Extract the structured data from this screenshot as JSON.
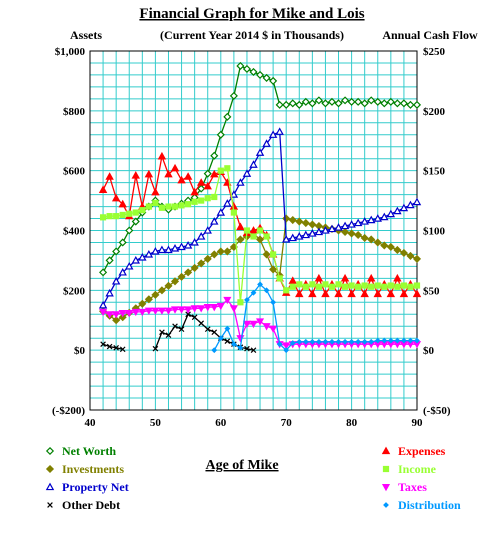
{
  "chart_data": {
    "type": "line",
    "title": "Financial Graph for Mike and Lois",
    "subtitle": "(Current Year 2014 $  in Thousands)",
    "left_axis_label": "Assets",
    "right_axis_label": "Annual Cash Flow",
    "xlabel": "Age of Mike",
    "xlim": [
      40,
      90
    ],
    "x_ticks": [
      "40",
      "50",
      "60",
      "70",
      "80",
      "90"
    ],
    "left_ylim": [
      -200,
      1000
    ],
    "left_y_ticks": [
      "$1,000",
      "$800",
      "$600",
      "$400",
      "$200",
      "$0",
      "(-$200)"
    ],
    "right_ylim": [
      -50,
      250
    ],
    "right_y_ticks": [
      "$250",
      "$200",
      "$150",
      "$100",
      "$50",
      "$0",
      "(-$50)"
    ],
    "grid": true,
    "background": "#ffffff",
    "grid_color": "#33cccc",
    "legend_left": [
      {
        "name": "Net Worth",
        "color": "#008000",
        "marker": "diamond-open"
      },
      {
        "name": "Investments",
        "color": "#808000",
        "marker": "diamond"
      },
      {
        "name": "Property Net",
        "color": "#0000cc",
        "marker": "triangle-open"
      },
      {
        "name": "Other Debt",
        "color": "#000000",
        "marker": "x"
      }
    ],
    "legend_right": [
      {
        "name": "Expenses",
        "color": "#ff0000",
        "marker": "triangle"
      },
      {
        "name": "Income",
        "color": "#99ff33",
        "marker": "square"
      },
      {
        "name": "Taxes",
        "color": "#ff00ff",
        "marker": "triangle-down"
      },
      {
        "name": "Distribution",
        "color": "#0099ff",
        "marker": "diamond-small"
      }
    ],
    "series": [
      {
        "name": "Net Worth",
        "axis": "left",
        "color": "#008000",
        "x": [
          42,
          43,
          44,
          45,
          46,
          47,
          48,
          49,
          50,
          51,
          52,
          53,
          54,
          55,
          56,
          57,
          58,
          59,
          60,
          61,
          62,
          63,
          64,
          65,
          66,
          67,
          68,
          69,
          70,
          71,
          72,
          73,
          74,
          75,
          76,
          77,
          78,
          79,
          80,
          81,
          82,
          83,
          84,
          85,
          86,
          87,
          88,
          89,
          90
        ],
        "y": [
          260,
          300,
          330,
          360,
          400,
          430,
          460,
          480,
          500,
          480,
          470,
          480,
          490,
          500,
          510,
          540,
          590,
          650,
          720,
          780,
          850,
          950,
          940,
          930,
          920,
          910,
          900,
          820,
          820,
          825,
          820,
          830,
          825,
          835,
          825,
          830,
          825,
          835,
          830,
          830,
          825,
          835,
          830,
          825,
          830,
          825,
          825,
          820,
          820
        ]
      },
      {
        "name": "Investments",
        "axis": "left",
        "color": "#808000",
        "x": [
          42,
          43,
          44,
          45,
          46,
          47,
          48,
          49,
          50,
          51,
          52,
          53,
          54,
          55,
          56,
          57,
          58,
          59,
          60,
          61,
          62,
          63,
          64,
          65,
          66,
          67,
          68,
          69,
          70,
          71,
          72,
          73,
          74,
          75,
          76,
          77,
          78,
          79,
          80,
          81,
          82,
          83,
          84,
          85,
          86,
          87,
          88,
          89,
          90
        ],
        "y": [
          130,
          115,
          100,
          110,
          125,
          140,
          155,
          170,
          185,
          200,
          215,
          230,
          245,
          260,
          275,
          290,
          305,
          320,
          330,
          330,
          345,
          370,
          380,
          390,
          370,
          320,
          270,
          250,
          440,
          435,
          430,
          425,
          420,
          415,
          410,
          405,
          400,
          395,
          390,
          385,
          375,
          370,
          360,
          350,
          345,
          335,
          325,
          315,
          305
        ]
      },
      {
        "name": "Property Net",
        "axis": "left",
        "color": "#0000cc",
        "x": [
          42,
          43,
          44,
          45,
          46,
          47,
          48,
          49,
          50,
          51,
          52,
          53,
          54,
          55,
          56,
          57,
          58,
          59,
          60,
          61,
          62,
          63,
          64,
          65,
          66,
          67,
          68,
          69,
          70,
          71,
          72,
          73,
          74,
          75,
          76,
          77,
          78,
          79,
          80,
          81,
          82,
          83,
          84,
          85,
          86,
          87,
          88,
          89,
          90
        ],
        "y": [
          150,
          190,
          230,
          260,
          280,
          300,
          310,
          320,
          330,
          335,
          335,
          340,
          345,
          350,
          360,
          380,
          400,
          430,
          460,
          490,
          520,
          560,
          590,
          620,
          660,
          690,
          720,
          730,
          370,
          375,
          380,
          385,
          390,
          395,
          400,
          405,
          410,
          415,
          420,
          425,
          430,
          435,
          440,
          445,
          455,
          465,
          475,
          485,
          495
        ]
      },
      {
        "name": "Other Debt",
        "axis": "left",
        "color": "#000000",
        "x": [
          42,
          43,
          44,
          45,
          50,
          51,
          52,
          53,
          54,
          55,
          56,
          57,
          58,
          59,
          60,
          61,
          62,
          63,
          64,
          65
        ],
        "y": [
          20,
          12,
          8,
          3,
          5,
          60,
          50,
          80,
          70,
          120,
          110,
          90,
          70,
          60,
          40,
          30,
          20,
          10,
          5,
          0
        ]
      },
      {
        "name": "Expenses",
        "axis": "right",
        "color": "#ff0000",
        "x": [
          42,
          43,
          44,
          45,
          46,
          47,
          48,
          49,
          50,
          51,
          52,
          53,
          54,
          55,
          56,
          57,
          58,
          59,
          60,
          61,
          62,
          63,
          64,
          65,
          66,
          67,
          68,
          69,
          70,
          71,
          72,
          73,
          74,
          75,
          76,
          77,
          78,
          79,
          80,
          81,
          82,
          83,
          84,
          85,
          86,
          87,
          88,
          89,
          90
        ],
        "y": [
          134,
          145,
          127,
          122,
          112,
          146,
          120,
          147,
          132,
          162,
          147,
          152,
          142,
          145,
          132,
          140,
          137,
          147,
          149,
          140,
          120,
          103,
          98,
          100,
          102,
          96,
          80,
          60,
          48,
          58,
          47,
          55,
          47,
          60,
          47,
          55,
          47,
          60,
          47,
          55,
          47,
          60,
          47,
          55,
          47,
          60,
          47,
          55,
          47
        ]
      },
      {
        "name": "Income",
        "axis": "right",
        "color": "#99ff33",
        "x": [
          42,
          43,
          44,
          45,
          46,
          47,
          48,
          49,
          50,
          51,
          52,
          53,
          54,
          55,
          56,
          57,
          58,
          59,
          60,
          61,
          62,
          63,
          64,
          65,
          66,
          67,
          68,
          69,
          70,
          71,
          72,
          73,
          74,
          75,
          76,
          77,
          78,
          79,
          80,
          81,
          82,
          83,
          84,
          85,
          86,
          87,
          88,
          89,
          90
        ],
        "y": [
          111,
          112,
          112,
          113,
          114,
          115,
          117,
          120,
          123,
          119,
          120,
          120,
          121,
          122,
          124,
          125,
          127,
          128,
          150,
          152,
          115,
          40,
          100,
          95,
          100,
          95,
          80,
          60,
          50,
          53,
          55,
          53,
          55,
          53,
          55,
          53,
          55,
          53,
          54,
          53,
          54,
          53,
          54,
          53,
          54,
          53,
          54,
          53,
          54
        ]
      },
      {
        "name": "Taxes",
        "axis": "right",
        "color": "#ff00ff",
        "x": [
          42,
          43,
          44,
          45,
          46,
          47,
          48,
          49,
          50,
          51,
          52,
          53,
          54,
          55,
          56,
          57,
          58,
          59,
          60,
          61,
          62,
          63,
          64,
          65,
          66,
          67,
          68,
          69,
          70,
          71,
          72,
          73,
          74,
          75,
          76,
          77,
          78,
          79,
          80,
          81,
          82,
          83,
          84,
          85,
          86,
          87,
          88,
          89,
          90
        ],
        "y": [
          32,
          30,
          30,
          31,
          31,
          32,
          32,
          33,
          33,
          33,
          33,
          34,
          34,
          34,
          35,
          35,
          36,
          36,
          37,
          42,
          35,
          10,
          22,
          22,
          24,
          20,
          18,
          5,
          4,
          5,
          5,
          5,
          5,
          5,
          5,
          5,
          5,
          5,
          5,
          5,
          5,
          5,
          5,
          5,
          5,
          5,
          5,
          5,
          5
        ]
      },
      {
        "name": "Distribution",
        "axis": "right",
        "color": "#0099ff",
        "x": [
          59,
          60,
          61,
          62,
          63,
          64,
          65,
          66,
          67,
          68,
          69,
          70,
          71,
          72,
          73,
          74,
          75,
          76,
          77,
          78,
          79,
          80,
          81,
          82,
          83,
          84,
          85,
          86,
          87,
          88,
          89,
          90
        ],
        "y": [
          0,
          10,
          18,
          5,
          2,
          42,
          48,
          55,
          50,
          40,
          5,
          0,
          6,
          7,
          7,
          7,
          7,
          7,
          7,
          7,
          7,
          7,
          7,
          7,
          7,
          8,
          8,
          8,
          8,
          8,
          8,
          8
        ]
      }
    ]
  }
}
